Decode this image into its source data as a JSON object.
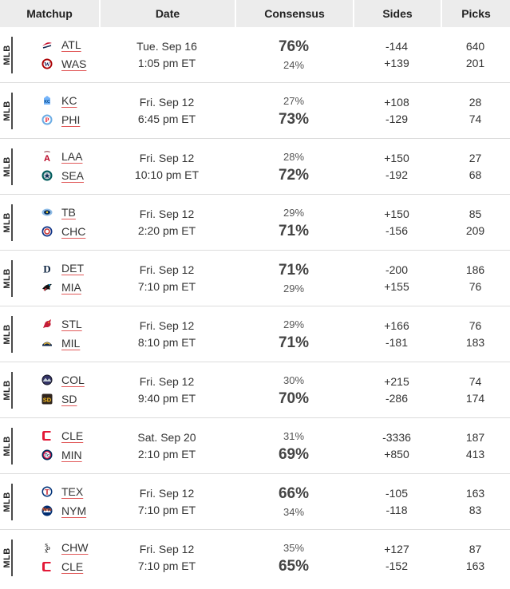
{
  "header": {
    "matchup": "Matchup",
    "date": "Date",
    "consensus": "Consensus",
    "sides": "Sides",
    "picks": "Picks"
  },
  "rows": [
    {
      "league": "MLB",
      "away": {
        "abbr": "ATL",
        "icon": "atl-logo-icon"
      },
      "home": {
        "abbr": "WAS",
        "icon": "was-logo-icon"
      },
      "date": "Tue. Sep 16",
      "time": "1:05 pm ET",
      "pct_away": "76%",
      "pct_home": "24%",
      "favored": "away",
      "side_away": "-144",
      "side_home": "+139",
      "picks_away": "640",
      "picks_home": "201"
    },
    {
      "league": "MLB",
      "away": {
        "abbr": "KC",
        "icon": "kc-logo-icon"
      },
      "home": {
        "abbr": "PHI",
        "icon": "phi-logo-icon"
      },
      "date": "Fri. Sep 12",
      "time": "6:45 pm ET",
      "pct_away": "27%",
      "pct_home": "73%",
      "favored": "home",
      "side_away": "+108",
      "side_home": "-129",
      "picks_away": "28",
      "picks_home": "74"
    },
    {
      "league": "MLB",
      "away": {
        "abbr": "LAA",
        "icon": "laa-logo-icon"
      },
      "home": {
        "abbr": "SEA",
        "icon": "sea-logo-icon"
      },
      "date": "Fri. Sep 12",
      "time": "10:10 pm ET",
      "pct_away": "28%",
      "pct_home": "72%",
      "favored": "home",
      "side_away": "+150",
      "side_home": "-192",
      "picks_away": "27",
      "picks_home": "68"
    },
    {
      "league": "MLB",
      "away": {
        "abbr": "TB",
        "icon": "tb-logo-icon"
      },
      "home": {
        "abbr": "CHC",
        "icon": "chc-logo-icon"
      },
      "date": "Fri. Sep 12",
      "time": "2:20 pm ET",
      "pct_away": "29%",
      "pct_home": "71%",
      "favored": "home",
      "side_away": "+150",
      "side_home": "-156",
      "picks_away": "85",
      "picks_home": "209"
    },
    {
      "league": "MLB",
      "away": {
        "abbr": "DET",
        "icon": "det-logo-icon"
      },
      "home": {
        "abbr": "MIA",
        "icon": "mia-logo-icon"
      },
      "date": "Fri. Sep 12",
      "time": "7:10 pm ET",
      "pct_away": "71%",
      "pct_home": "29%",
      "favored": "away",
      "side_away": "-200",
      "side_home": "+155",
      "picks_away": "186",
      "picks_home": "76"
    },
    {
      "league": "MLB",
      "away": {
        "abbr": "STL",
        "icon": "stl-logo-icon"
      },
      "home": {
        "abbr": "MIL",
        "icon": "mil-logo-icon"
      },
      "date": "Fri. Sep 12",
      "time": "8:10 pm ET",
      "pct_away": "29%",
      "pct_home": "71%",
      "favored": "home",
      "side_away": "+166",
      "side_home": "-181",
      "picks_away": "76",
      "picks_home": "183"
    },
    {
      "league": "MLB",
      "away": {
        "abbr": "COL",
        "icon": "col-logo-icon"
      },
      "home": {
        "abbr": "SD",
        "icon": "sd-logo-icon"
      },
      "date": "Fri. Sep 12",
      "time": "9:40 pm ET",
      "pct_away": "30%",
      "pct_home": "70%",
      "favored": "home",
      "side_away": "+215",
      "side_home": "-286",
      "picks_away": "74",
      "picks_home": "174"
    },
    {
      "league": "MLB",
      "away": {
        "abbr": "CLE",
        "icon": "cle-logo-icon"
      },
      "home": {
        "abbr": "MIN",
        "icon": "min-logo-icon"
      },
      "date": "Sat. Sep 20",
      "time": "2:10 pm ET",
      "pct_away": "31%",
      "pct_home": "69%",
      "favored": "home",
      "side_away": "-3336",
      "side_home": "+850",
      "picks_away": "187",
      "picks_home": "413"
    },
    {
      "league": "MLB",
      "away": {
        "abbr": "TEX",
        "icon": "tex-logo-icon"
      },
      "home": {
        "abbr": "NYM",
        "icon": "nym-logo-icon"
      },
      "date": "Fri. Sep 12",
      "time": "7:10 pm ET",
      "pct_away": "66%",
      "pct_home": "34%",
      "favored": "away",
      "side_away": "-105",
      "side_home": "-118",
      "picks_away": "163",
      "picks_home": "83"
    },
    {
      "league": "MLB",
      "away": {
        "abbr": "CHW",
        "icon": "chw-logo-icon"
      },
      "home": {
        "abbr": "CLE",
        "icon": "cle-logo-icon"
      },
      "date": "Fri. Sep 12",
      "time": "7:10 pm ET",
      "pct_away": "35%",
      "pct_home": "65%",
      "favored": "home",
      "side_away": "+127",
      "side_home": "-152",
      "picks_away": "87",
      "picks_home": "163"
    }
  ],
  "colors": {
    "header_bg": "#ececec",
    "underline": "#e15a5a",
    "divider": "#dcdcdc"
  }
}
